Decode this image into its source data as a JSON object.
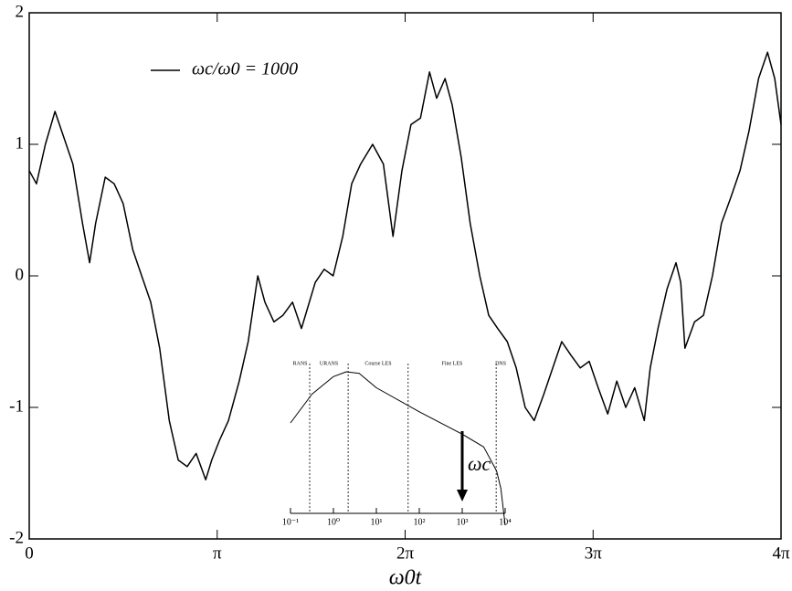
{
  "chart_data": [
    {
      "type": "line",
      "x_label": "ω0t",
      "xlim": [
        0,
        12.566
      ],
      "ylim": [
        -2,
        2
      ],
      "xticks": [
        {
          "value": 0,
          "label": "0"
        },
        {
          "value": 3.1416,
          "label": "π"
        },
        {
          "value": 6.2832,
          "label": "2π"
        },
        {
          "value": 9.4248,
          "label": "3π"
        },
        {
          "value": 12.566,
          "label": "4π"
        }
      ],
      "yticks": [
        -2,
        -1,
        0,
        1,
        2
      ],
      "legend": "upper left",
      "x": [
        0,
        0.12,
        0.27,
        0.43,
        0.58,
        0.73,
        0.89,
        1.01,
        1.11,
        1.27,
        1.42,
        1.57,
        1.73,
        1.88,
        2.03,
        2.18,
        2.34,
        2.49,
        2.64,
        2.79,
        2.95,
        3.05,
        3.18,
        3.33,
        3.51,
        3.66,
        3.82,
        3.94,
        4.09,
        4.24,
        4.4,
        4.55,
        4.78,
        4.93,
        5.08,
        5.24,
        5.39,
        5.54,
        5.74,
        5.92,
        6.08,
        6.23,
        6.38,
        6.54,
        6.69,
        6.81,
        6.95,
        7.07,
        7.22,
        7.37,
        7.53,
        7.68,
        7.83,
        7.99,
        8.14,
        8.29,
        8.44,
        8.6,
        8.75,
        8.9,
        9.05,
        9.21,
        9.36,
        9.51,
        9.67,
        9.82,
        9.97,
        10.12,
        10.28,
        10.38,
        10.51,
        10.66,
        10.81,
        10.89,
        10.96,
        11.12,
        11.27,
        11.42,
        11.57,
        11.73,
        11.88,
        12.03,
        12.19,
        12.34,
        12.46,
        12.566
      ],
      "series": [
        {
          "name": "ωc/ω0 = 1000",
          "color": "#000000",
          "values": [
            0.8,
            0.7,
            1.0,
            1.25,
            1.05,
            0.85,
            0.4,
            0.1,
            0.4,
            0.75,
            0.7,
            0.55,
            0.2,
            0.0,
            -0.2,
            -0.55,
            -1.1,
            -1.4,
            -1.45,
            -1.35,
            -1.55,
            -1.4,
            -1.25,
            -1.1,
            -0.8,
            -0.5,
            0.0,
            -0.2,
            -0.35,
            -0.3,
            -0.2,
            -0.4,
            -0.05,
            0.05,
            0.0,
            0.3,
            0.7,
            0.85,
            1.0,
            0.85,
            0.3,
            0.8,
            1.15,
            1.2,
            1.55,
            1.35,
            1.5,
            1.3,
            0.9,
            0.4,
            0.0,
            -0.3,
            -0.4,
            -0.5,
            -0.7,
            -1.0,
            -1.1,
            -0.9,
            -0.7,
            -0.5,
            -0.6,
            -0.7,
            -0.65,
            -0.85,
            -1.05,
            -0.8,
            -1.0,
            -0.85,
            -1.1,
            -0.7,
            -0.4,
            -0.1,
            0.1,
            -0.05,
            -0.55,
            -0.35,
            -0.3,
            0.0,
            0.4,
            0.6,
            0.8,
            1.1,
            1.5,
            1.7,
            1.5,
            1.15
          ]
        }
      ]
    },
    {
      "type": "line",
      "xscale": "log",
      "xlim": [
        0.1,
        10000
      ],
      "ylim": [
        0,
        1
      ],
      "xticks": [
        {
          "value": 0.1,
          "label": "10⁻¹"
        },
        {
          "value": 1,
          "label": "10⁰"
        },
        {
          "value": 10,
          "label": "10¹"
        },
        {
          "value": 100,
          "label": "10²"
        },
        {
          "value": 1000,
          "label": "10³"
        },
        {
          "value": 10000,
          "label": "10⁴"
        }
      ],
      "x": [
        0.1,
        0.316,
        1,
        2,
        3.98,
        10,
        100,
        1000,
        3162,
        6310,
        7943,
        10000
      ],
      "series": [
        {
          "color": "#000000",
          "values": [
            0.64,
            0.82,
            0.93,
            0.96,
            0.95,
            0.86,
            0.71,
            0.57,
            0.49,
            0.34,
            0.23,
            0
          ]
        }
      ],
      "boundaries": [
        0.28,
        2.2,
        55,
        6170
      ],
      "regions": [
        "RANS",
        "URANS",
        "Course LES",
        "Fine LES",
        "DNS"
      ],
      "annotation": {
        "text": "ωc",
        "x": 1000
      }
    }
  ]
}
